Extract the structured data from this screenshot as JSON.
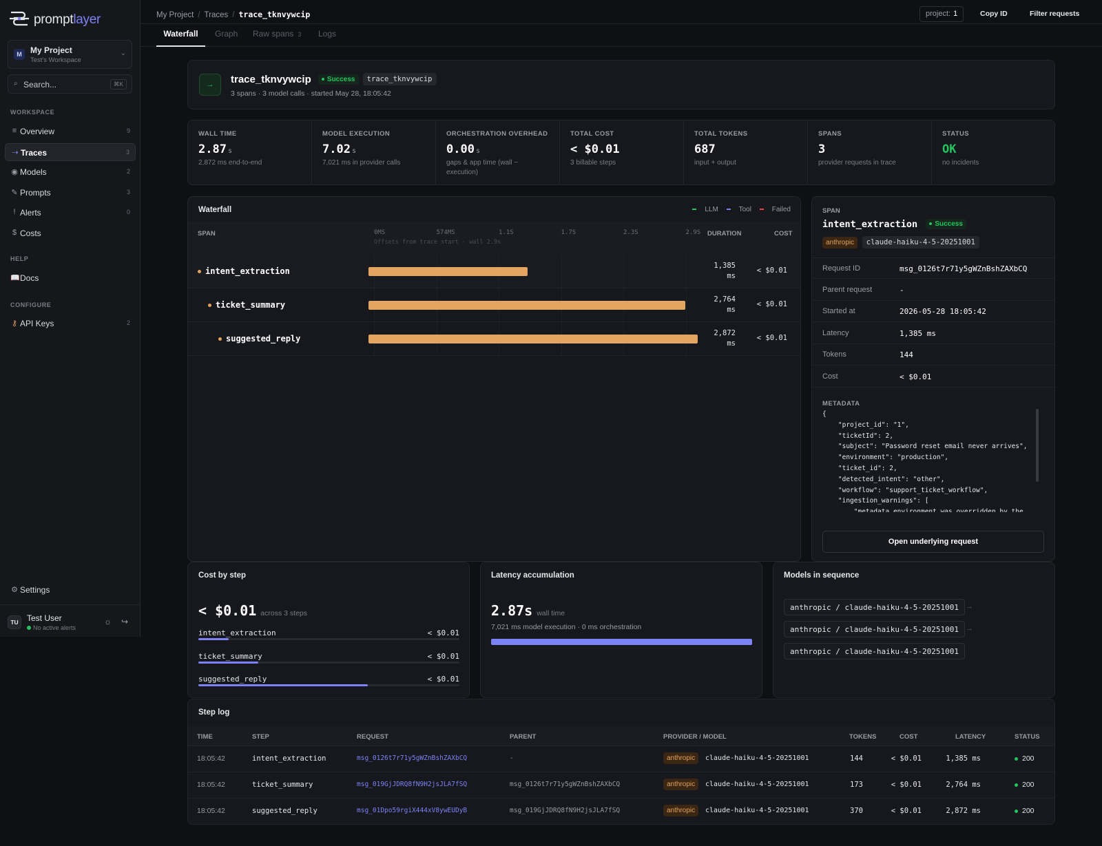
{
  "sidebar": {
    "logo": {
      "text_a": "prompt",
      "text_b": "layer"
    },
    "project": {
      "avatar": "M",
      "name": "My Project",
      "workspace": "Test's Workspace"
    },
    "search": {
      "placeholder": "Search...",
      "shortcut": "⌘K"
    },
    "sections": {
      "workspace": "WORKSPACE",
      "help": "HELP",
      "configure": "CONFIGURE"
    },
    "items": [
      {
        "label": "Overview",
        "count": "9",
        "icon": "list-icon"
      },
      {
        "label": "Traces",
        "count": "3",
        "icon": "trace-icon",
        "active": true
      },
      {
        "label": "Models",
        "count": "2",
        "icon": "model-icon"
      },
      {
        "label": "Prompts",
        "count": "3",
        "icon": "pencil-icon"
      },
      {
        "label": "Alerts",
        "count": "0",
        "icon": "alert-icon"
      },
      {
        "label": "Costs",
        "count": "",
        "icon": "dollar-icon"
      }
    ],
    "docs": {
      "label": "Docs",
      "icon": "book-icon"
    },
    "api_keys": {
      "label": "API Keys",
      "count": "2",
      "icon": "key-icon"
    },
    "settings": {
      "label": "Settings",
      "icon": "gear-icon"
    },
    "user": {
      "avatar": "TU",
      "name": "Test User",
      "status": "No active alerts"
    }
  },
  "topbar": {
    "crumbs": [
      "My Project",
      "Traces",
      "trace_tknvywcip"
    ],
    "project_label": "project:",
    "project_value": "1",
    "copy_id": "Copy ID",
    "filter": "Filter requests"
  },
  "tabs": [
    {
      "label": "Waterfall",
      "active": true
    },
    {
      "label": "Graph"
    },
    {
      "label": "Raw spans",
      "count": "3"
    },
    {
      "label": "Logs"
    }
  ],
  "trace": {
    "icon": "→",
    "name": "trace_tknvywcip",
    "status": "Success",
    "id_pill": "trace_tknvywcip",
    "meta": "3 spans · 3 model calls · started May 28, 18:05:42"
  },
  "stats": [
    {
      "label": "WALL TIME",
      "value": "2.87",
      "unit": "s",
      "sub": "2,872 ms end-to-end"
    },
    {
      "label": "MODEL EXECUTION",
      "value": "7.02",
      "unit": "s",
      "sub": "7,021 ms in provider calls"
    },
    {
      "label": "ORCHESTRATION OVERHEAD",
      "value": "0.00",
      "unit": "s",
      "sub": "gaps & app time (wall − execution)"
    },
    {
      "label": "TOTAL COST",
      "value": "< $0.01",
      "unit": "",
      "sub": "3 billable steps"
    },
    {
      "label": "TOTAL TOKENS",
      "value": "687",
      "unit": "",
      "sub": "input + output"
    },
    {
      "label": "SPANS",
      "value": "3",
      "unit": "",
      "sub": "provider requests in trace"
    },
    {
      "label": "STATUS",
      "value": "OK",
      "unit": "",
      "sub": "no incidents",
      "color": "#22c55e"
    }
  ],
  "waterfall": {
    "title": "Waterfall",
    "legend": [
      "LLM",
      "Tool",
      "Failed"
    ],
    "legend_colors": [
      "#22c55e",
      "#7c83f5",
      "#ef4444"
    ],
    "headers": {
      "span": "SPAN",
      "duration": "DURATION",
      "cost": "COST"
    },
    "ticks": [
      "0MS",
      "574MS",
      "1.1S",
      "1.7S",
      "2.3S",
      "2.9S"
    ],
    "subtitle": "Offsets from trace start · wall 2.9s",
    "wall_ms": 2872,
    "rows": [
      {
        "name": "intent_extraction",
        "start_ms": 0,
        "duration_ms": 1385,
        "duration_label": "1,385",
        "unit": "ms",
        "cost": "< $0.01"
      },
      {
        "name": "ticket_summary",
        "start_ms": 0,
        "duration_ms": 2764,
        "duration_label": "2,764",
        "unit": "ms",
        "cost": "< $0.01"
      },
      {
        "name": "suggested_reply",
        "start_ms": 0,
        "duration_ms": 2872,
        "duration_label": "2,872",
        "unit": "ms",
        "cost": "< $0.01"
      }
    ]
  },
  "span": {
    "label": "SPAN",
    "name": "intent_extraction",
    "status": "Success",
    "provider": "anthropic",
    "model": "claude-haiku-4-5-20251001",
    "fields": [
      {
        "k": "Request ID",
        "v": "msg_0126t7r71y5gWZnBshZAXbCQ"
      },
      {
        "k": "Parent request",
        "v": "-"
      },
      {
        "k": "Started at",
        "v": "2026-05-28 18:05:42"
      },
      {
        "k": "Latency",
        "v": "1,385 ms"
      },
      {
        "k": "Tokens",
        "v": "144"
      },
      {
        "k": "Cost",
        "v": "< $0.01"
      }
    ],
    "metadata_label": "METADATA",
    "metadata": "{\n    \"project_id\": \"1\",\n    \"ticketId\": 2,\n    \"subject\": \"Password reset email never arrives\",\n    \"environment\": \"production\",\n    \"ticket_id\": 2,\n    \"detected_intent\": \"other\",\n    \"workflow\": \"support_ticket_workflow\",\n    \"ingestion_warnings\": [\n        \"metadata.environment was overridden by the",
    "open_button": "Open underlying request"
  },
  "cost_by_step": {
    "title": "Cost by step",
    "total": "< $0.01",
    "total_sub": "across 3 steps",
    "rows": [
      {
        "name": "intent_extraction",
        "value": "< $0.01",
        "share": 0.115
      },
      {
        "name": "ticket_summary",
        "value": "< $0.01",
        "share": 0.23
      },
      {
        "name": "suggested_reply",
        "value": "< $0.01",
        "share": 0.65
      }
    ]
  },
  "latency": {
    "title": "Latency accumulation",
    "value": "2.87s",
    "value_sub": "wall time",
    "sub": "7,021 ms model execution · 0 ms orchestration",
    "fraction": 1.0
  },
  "models": {
    "title": "Models in sequence",
    "items": [
      "anthropic / claude-haiku-4-5-20251001",
      "anthropic / claude-haiku-4-5-20251001",
      "anthropic / claude-haiku-4-5-20251001"
    ]
  },
  "step_log": {
    "title": "Step log",
    "headers": [
      "TIME",
      "STEP",
      "REQUEST",
      "PARENT",
      "PROVIDER / MODEL",
      "TOKENS",
      "COST",
      "LATENCY",
      "STATUS"
    ],
    "rows": [
      {
        "time": "18:05:42",
        "step": "intent_extraction",
        "request": "msg_0126t7r71y5gWZnBshZAXbCQ",
        "parent": "-",
        "provider": "anthropic",
        "model": "claude-haiku-4-5-20251001",
        "tokens": "144",
        "cost": "< $0.01",
        "latency": "1,385 ms",
        "status": "200"
      },
      {
        "time": "18:05:42",
        "step": "ticket_summary",
        "request": "msg_019GjJDRQ8fN9H2jsJLA7fSQ",
        "parent": "msg_0126t7r71y5gWZnBshZAXbCQ",
        "provider": "anthropic",
        "model": "claude-haiku-4-5-20251001",
        "tokens": "173",
        "cost": "< $0.01",
        "latency": "2,764 ms",
        "status": "200"
      },
      {
        "time": "18:05:42",
        "step": "suggested_reply",
        "request": "msg_01Dpo59rgiX444xV8ywEUDyB",
        "parent": "msg_019GjJDRQ8fN9H2jsJLA7fSQ",
        "provider": "anthropic",
        "model": "claude-haiku-4-5-20251001",
        "tokens": "370",
        "cost": "< $0.01",
        "latency": "2,872 ms",
        "status": "200"
      }
    ]
  }
}
